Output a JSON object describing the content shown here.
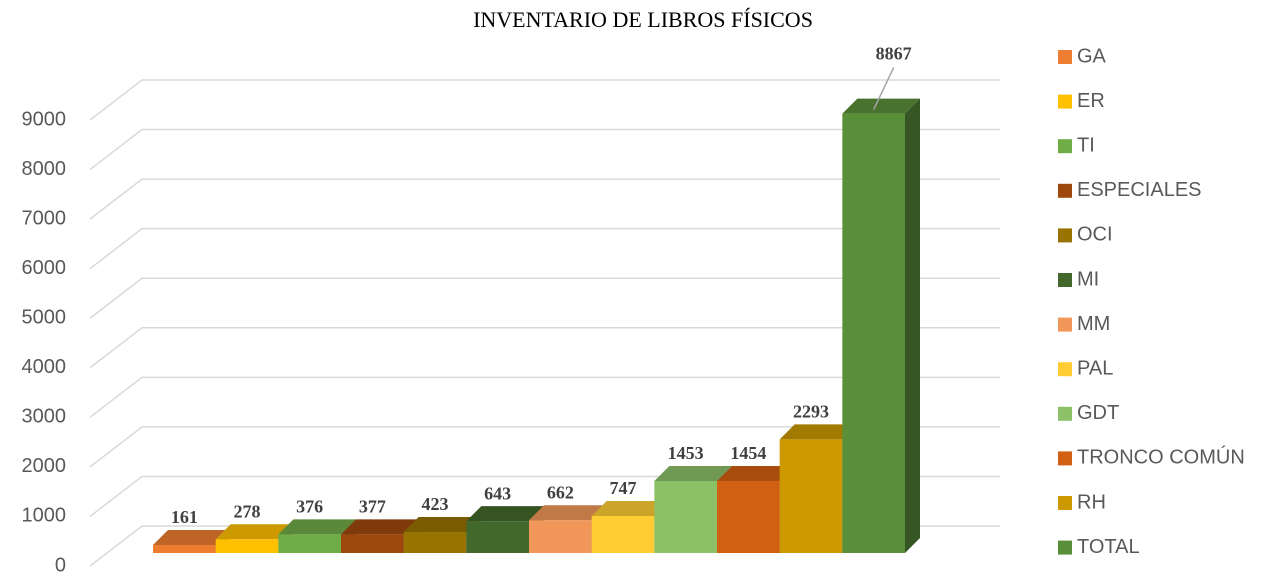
{
  "chart_data": {
    "type": "bar3d",
    "title": "INVENTARIO DE LIBROS FÍSICOS",
    "series": [
      {
        "name": "GA",
        "color": "#ed7d31",
        "values": [
          161
        ]
      },
      {
        "name": "ER",
        "color": "#ffc000",
        "values": [
          278
        ]
      },
      {
        "name": "TI",
        "color": "#70ad47",
        "values": [
          376
        ]
      },
      {
        "name": "ESPECIALES",
        "color": "#9e480e",
        "values": [
          377
        ]
      },
      {
        "name": "OCI",
        "color": "#997300",
        "values": [
          423
        ]
      },
      {
        "name": "MI",
        "color": "#43682b",
        "values": [
          643
        ]
      },
      {
        "name": "MM",
        "color": "#f1975a",
        "values": [
          662
        ]
      },
      {
        "name": "PAL",
        "color": "#ffcd33",
        "values": [
          747
        ]
      },
      {
        "name": "GDT",
        "color": "#8cc168",
        "values": [
          1453
        ]
      },
      {
        "name": "TRONCO COMÚN",
        "color": "#d26012",
        "values": [
          1454
        ]
      },
      {
        "name": "RH",
        "color": "#cc9900",
        "values": [
          2293
        ]
      },
      {
        "name": "TOTAL",
        "color": "#5a8f3a",
        "values": [
          8867
        ]
      }
    ],
    "ylim": [
      0,
      9000
    ],
    "yticks": [
      0,
      1000,
      2000,
      3000,
      4000,
      5000,
      6000,
      7000,
      8000,
      9000
    ],
    "grid": true,
    "legend": "right"
  }
}
